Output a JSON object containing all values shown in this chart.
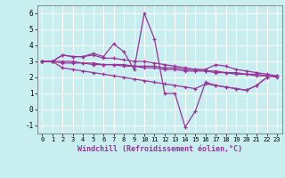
{
  "xlabel": "Windchill (Refroidissement éolien,°C)",
  "bg_color": "#c8eef0",
  "grid_color": "#ffffff",
  "line_color": "#993399",
  "xlim": [
    -0.5,
    23.5
  ],
  "ylim": [
    -1.5,
    6.5
  ],
  "yticks": [
    -1,
    0,
    1,
    2,
    3,
    4,
    5,
    6
  ],
  "xticks": [
    0,
    1,
    2,
    3,
    4,
    5,
    6,
    7,
    8,
    9,
    10,
    11,
    12,
    13,
    14,
    15,
    16,
    17,
    18,
    19,
    20,
    21,
    22,
    23
  ],
  "series": [
    {
      "x": [
        0,
        1,
        2,
        3,
        4,
        5,
        6,
        7,
        8,
        9,
        10,
        11,
        12,
        13,
        14,
        15,
        16,
        17,
        18,
        19,
        20,
        21,
        22
      ],
      "y": [
        3.0,
        3.0,
        3.4,
        3.3,
        3.3,
        3.5,
        3.3,
        4.1,
        3.6,
        2.5,
        6.0,
        4.4,
        1.0,
        1.0,
        -1.1,
        -0.1,
        1.7,
        1.5,
        1.4,
        1.3,
        1.2,
        1.5,
        2.0
      ]
    },
    {
      "x": [
        0,
        1,
        2,
        3,
        4,
        5,
        6,
        7,
        8,
        9,
        10,
        11,
        12,
        13,
        14,
        15,
        16,
        17,
        18,
        19,
        20,
        21,
        22,
        23
      ],
      "y": [
        3.0,
        3.0,
        3.4,
        3.3,
        3.3,
        3.4,
        3.2,
        3.2,
        3.1,
        3.0,
        3.0,
        2.9,
        2.8,
        2.7,
        2.6,
        2.5,
        2.5,
        2.8,
        2.7,
        2.5,
        2.4,
        2.3,
        2.2,
        2.1
      ]
    },
    {
      "x": [
        0,
        1,
        2,
        3,
        4,
        5,
        6,
        7,
        8,
        9,
        10,
        11,
        12,
        13,
        14,
        15,
        16,
        17,
        18,
        19,
        20,
        21,
        22,
        23
      ],
      "y": [
        3.0,
        3.0,
        3.0,
        3.0,
        2.9,
        2.9,
        2.8,
        2.8,
        2.8,
        2.7,
        2.7,
        2.7,
        2.6,
        2.6,
        2.5,
        2.5,
        2.4,
        2.4,
        2.3,
        2.3,
        2.2,
        2.2,
        2.1,
        2.1
      ]
    },
    {
      "x": [
        0,
        1,
        2,
        3,
        4,
        5,
        6,
        7,
        8,
        9,
        10,
        11,
        12,
        13,
        14,
        15,
        16,
        17,
        18,
        19,
        20,
        21,
        22,
        23
      ],
      "y": [
        3.0,
        3.0,
        2.9,
        2.9,
        2.9,
        2.8,
        2.8,
        2.8,
        2.7,
        2.7,
        2.6,
        2.6,
        2.5,
        2.5,
        2.4,
        2.4,
        2.4,
        2.3,
        2.3,
        2.2,
        2.2,
        2.1,
        2.1,
        2.0
      ]
    },
    {
      "x": [
        0,
        1,
        2,
        3,
        4,
        5,
        6,
        7,
        8,
        9,
        10,
        11,
        12,
        13,
        14,
        15,
        16,
        17,
        18,
        19,
        20,
        21,
        22
      ],
      "y": [
        3.0,
        3.0,
        2.6,
        2.5,
        2.4,
        2.3,
        2.2,
        2.1,
        2.0,
        1.9,
        1.8,
        1.7,
        1.6,
        1.5,
        1.4,
        1.3,
        1.6,
        1.5,
        1.4,
        1.3,
        1.2,
        1.5,
        2.0
      ]
    }
  ]
}
